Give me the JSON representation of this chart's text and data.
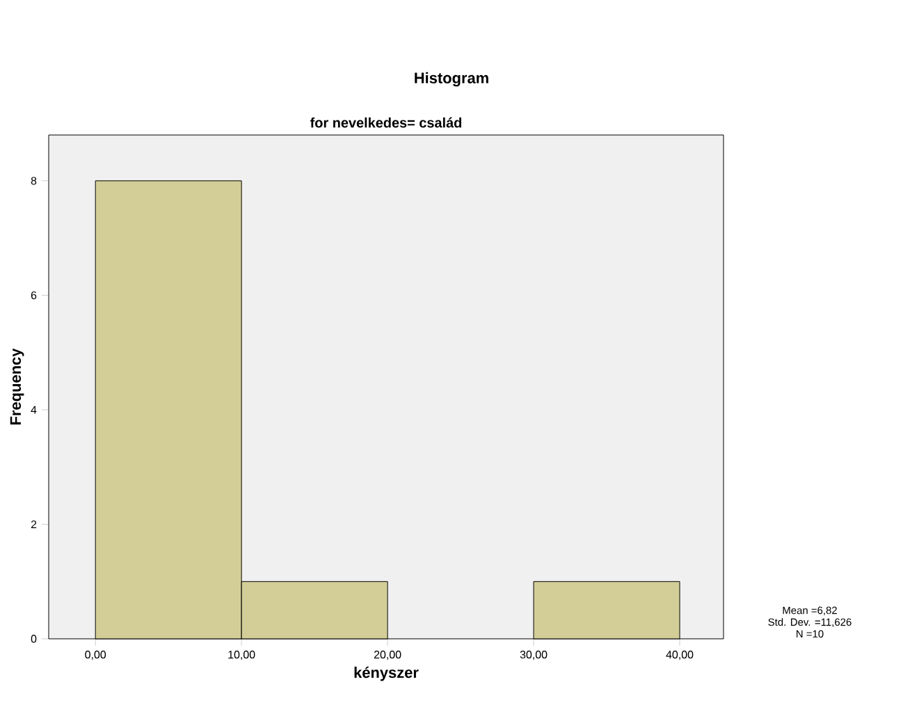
{
  "chart_data": {
    "type": "histogram",
    "title": "Histogram",
    "subtitle": "for nevelkedes= család",
    "xlabel": "kényszer",
    "ylabel": "Frequency",
    "bins": [
      0,
      10,
      20,
      30,
      40
    ],
    "values": [
      8,
      1,
      0,
      1
    ],
    "color": "#d3ce97",
    "xlim": [
      -3.2,
      43
    ],
    "ylim": [
      0,
      8.8
    ],
    "xticks": [
      {
        "value": 0,
        "label": "0,00"
      },
      {
        "value": 10,
        "label": "10,00"
      },
      {
        "value": 20,
        "label": "20,00"
      },
      {
        "value": 30,
        "label": "30,00"
      },
      {
        "value": 40,
        "label": "40,00"
      }
    ],
    "yticks": [
      0,
      2,
      4,
      6,
      8
    ],
    "annotations": [
      "Mean =6,82",
      "Std. Dev. =11,626",
      "N =10"
    ]
  }
}
